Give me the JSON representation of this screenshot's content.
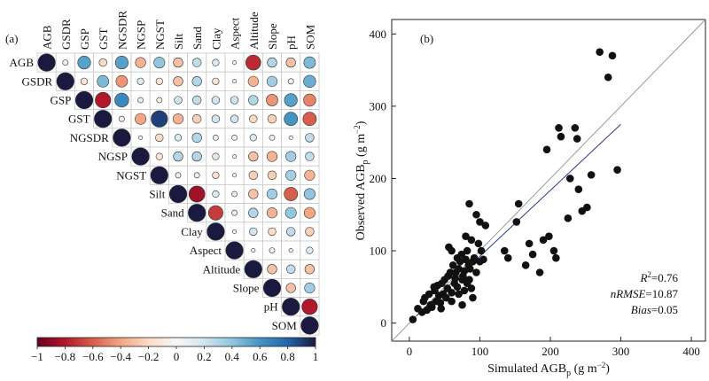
{
  "chart_data": [
    {
      "panel_label": "(a)",
      "type": "heatmap",
      "style": "correlation-circles-upper-triangle",
      "variables": [
        "AGB",
        "GSDR",
        "GSP",
        "GST",
        "NGSDR",
        "NGSP",
        "NGST",
        "Silt",
        "Sand",
        "Clay",
        "Aspect",
        "Altitude",
        "Slope",
        "pH",
        "SOM"
      ],
      "matrix": [
        [
          1,
          0.1,
          0.55,
          -0.2,
          0.55,
          -0.35,
          0.4,
          -0.3,
          0.25,
          0.15,
          0.05,
          -0.75,
          0.3,
          -0.3,
          0.45
        ],
        [
          null,
          1,
          -0.15,
          0.45,
          -0.45,
          0.15,
          -0.15,
          -0.3,
          0.3,
          -0.15,
          0.05,
          -0.35,
          0.35,
          -0.1,
          0.5
        ],
        [
          null,
          null,
          1,
          -0.8,
          0.65,
          0.1,
          -0.1,
          0.2,
          0.25,
          0.2,
          0.2,
          0.3,
          -0.45,
          0.55,
          -0.5
        ],
        [
          null,
          null,
          null,
          1,
          -0.1,
          -0.4,
          0.9,
          -0.35,
          -0.25,
          0.2,
          0.2,
          -0.2,
          -0.25,
          0.6,
          -0.6
        ],
        [
          null,
          null,
          null,
          null,
          1,
          0.05,
          -0.2,
          0.15,
          0.3,
          0.1,
          0.1,
          0.15,
          0.1,
          0.05,
          0.25
        ],
        [
          null,
          null,
          null,
          null,
          null,
          1,
          -0.15,
          0.3,
          0.3,
          0.15,
          0.05,
          -0.3,
          -0.35,
          0.35,
          0.25
        ],
        [
          null,
          null,
          null,
          null,
          null,
          null,
          1,
          0.1,
          0.1,
          -0.15,
          0.05,
          -0.25,
          -0.25,
          0.35,
          -0.35
        ],
        [
          null,
          null,
          null,
          null,
          null,
          null,
          null,
          1,
          -0.85,
          0.15,
          0.1,
          -0.3,
          0.35,
          -0.6,
          0.4
        ],
        [
          null,
          null,
          null,
          null,
          null,
          null,
          null,
          null,
          1,
          -0.7,
          0.1,
          0.3,
          -0.35,
          0.4,
          -0.4
        ],
        [
          null,
          null,
          null,
          null,
          null,
          null,
          null,
          null,
          null,
          1,
          0.05,
          0.2,
          -0.2,
          0.25,
          -0.25
        ],
        [
          null,
          null,
          null,
          null,
          null,
          null,
          null,
          null,
          null,
          null,
          1,
          0.05,
          0.1,
          0.05,
          0.15
        ],
        [
          null,
          null,
          null,
          null,
          null,
          null,
          null,
          null,
          null,
          null,
          null,
          1,
          -0.3,
          0.25,
          -0.3
        ],
        [
          null,
          null,
          null,
          null,
          null,
          null,
          null,
          null,
          null,
          null,
          null,
          null,
          1,
          -0.3,
          0.35
        ],
        [
          null,
          null,
          null,
          null,
          null,
          null,
          null,
          null,
          null,
          null,
          null,
          null,
          null,
          1,
          -0.8
        ],
        [
          null,
          null,
          null,
          null,
          null,
          null,
          null,
          null,
          null,
          null,
          null,
          null,
          null,
          null,
          1
        ]
      ],
      "colorbar": {
        "min": -1,
        "max": 1,
        "ticks": [
          -1,
          -0.8,
          -0.6,
          -0.4,
          -0.2,
          0,
          0.2,
          0.4,
          0.6,
          0.8,
          1
        ],
        "tick_labels": [
          "−1",
          "−0.8",
          "−0.6",
          "−0.4",
          "−0.2",
          "0",
          "0.2",
          "0.4",
          "0.6",
          "0.8",
          "1"
        ],
        "colors": [
          "#67001f",
          "#b2182b",
          "#d6604d",
          "#f4a582",
          "#fddbc7",
          "#f7f7f7",
          "#d1e5f0",
          "#92c5de",
          "#4393c3",
          "#2166ac",
          "#1a1a40"
        ]
      }
    },
    {
      "panel_label": "(b)",
      "type": "scatter",
      "xlabel": "Simulated AGB",
      "ylabel": "Observed AGB",
      "label_subscript": "p",
      "label_unit": " (g m",
      "label_exp": "−2",
      "xlim": [
        -25,
        420
      ],
      "ylim": [
        -25,
        420
      ],
      "xticks": [
        0,
        100,
        200,
        300,
        400
      ],
      "yticks": [
        0,
        100,
        200,
        300,
        400
      ],
      "one_to_one_line": true,
      "fit_line": {
        "x": [
          10,
          300
        ],
        "y": [
          10,
          275
        ],
        "color": "#2b3a8c"
      },
      "annotations": [
        {
          "label": "R",
          "sup": "2",
          "value": "=0.76",
          "italic": true
        },
        {
          "label": "nRMSE",
          "value": "=10.87",
          "italic": true
        },
        {
          "label": "Bias",
          "value": "=0.05",
          "italic": true
        }
      ],
      "points": [
        [
          5,
          5
        ],
        [
          12,
          20
        ],
        [
          18,
          15
        ],
        [
          20,
          30
        ],
        [
          22,
          35
        ],
        [
          25,
          18
        ],
        [
          28,
          40
        ],
        [
          30,
          25
        ],
        [
          32,
          22
        ],
        [
          35,
          50
        ],
        [
          36,
          45
        ],
        [
          38,
          30
        ],
        [
          40,
          52
        ],
        [
          42,
          38
        ],
        [
          44,
          28
        ],
        [
          46,
          55
        ],
        [
          48,
          40
        ],
        [
          50,
          60
        ],
        [
          52,
          35
        ],
        [
          54,
          48
        ],
        [
          55,
          65
        ],
        [
          56,
          105
        ],
        [
          58,
          70
        ],
        [
          60,
          100
        ],
        [
          60,
          42
        ],
        [
          62,
          80
        ],
        [
          64,
          55
        ],
        [
          65,
          62
        ],
        [
          66,
          70
        ],
        [
          68,
          90
        ],
        [
          68,
          50
        ],
        [
          70,
          75
        ],
        [
          70,
          40
        ],
        [
          72,
          85
        ],
        [
          74,
          95
        ],
        [
          75,
          60
        ],
        [
          76,
          65
        ],
        [
          78,
          72
        ],
        [
          78,
          45
        ],
        [
          80,
          88
        ],
        [
          80,
          120
        ],
        [
          82,
          100
        ],
        [
          82,
          55
        ],
        [
          84,
          80
        ],
        [
          85,
          60
        ],
        [
          85,
          165
        ],
        [
          86,
          75
        ],
        [
          88,
          48
        ],
        [
          88,
          115
        ],
        [
          90,
          85
        ],
        [
          90,
          35
        ],
        [
          92,
          90
        ],
        [
          95,
          70
        ],
        [
          95,
          150
        ],
        [
          98,
          110
        ],
        [
          100,
          85
        ],
        [
          100,
          140
        ],
        [
          102,
          100
        ],
        [
          105,
          88
        ],
        [
          108,
          135
        ],
        [
          135,
          100
        ],
        [
          140,
          90
        ],
        [
          152,
          140
        ],
        [
          155,
          165
        ],
        [
          165,
          80
        ],
        [
          175,
          95
        ],
        [
          185,
          70
        ],
        [
          190,
          115
        ],
        [
          195,
          240
        ],
        [
          198,
          120
        ],
        [
          205,
          100
        ],
        [
          208,
          90
        ],
        [
          215,
          258
        ],
        [
          225,
          145
        ],
        [
          228,
          200
        ],
        [
          235,
          270
        ],
        [
          238,
          255
        ],
        [
          240,
          185
        ],
        [
          245,
          155
        ],
        [
          252,
          160
        ],
        [
          170,
          110
        ],
        [
          270,
          375
        ],
        [
          288,
          370
        ],
        [
          295,
          212
        ],
        [
          282,
          340
        ],
        [
          258,
          205
        ],
        [
          212,
          270
        ],
        [
          60,
          30
        ],
        [
          75,
          25
        ],
        [
          45,
          20
        ]
      ]
    }
  ]
}
